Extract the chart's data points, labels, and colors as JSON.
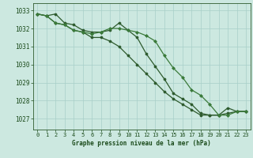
{
  "background_color": "#cce8e0",
  "grid_color": "#a8cfc8",
  "line_color_dark": "#2d5a2d",
  "line_color_mid": "#3a7a3a",
  "xlabel": "Graphe pression niveau de la mer (hPa)",
  "xlabel_color": "#1a4a1a",
  "tick_color": "#1a4a1a",
  "spine_color": "#2d5a2d",
  "xlim": [
    -0.5,
    23.5
  ],
  "ylim": [
    1026.4,
    1033.4
  ],
  "yticks": [
    1027,
    1028,
    1029,
    1030,
    1031,
    1032,
    1033
  ],
  "xticks": [
    0,
    1,
    2,
    3,
    4,
    5,
    6,
    7,
    8,
    9,
    10,
    11,
    12,
    13,
    14,
    15,
    16,
    17,
    18,
    19,
    20,
    21,
    22,
    23
  ],
  "hours": [
    0,
    1,
    2,
    3,
    4,
    5,
    6,
    7,
    8,
    9,
    10,
    11,
    12,
    13,
    14,
    15,
    16,
    17,
    18,
    19,
    20,
    21,
    22,
    23
  ],
  "line1": [
    1032.8,
    1032.7,
    1032.8,
    1032.3,
    1032.2,
    1031.9,
    1031.8,
    1031.8,
    1031.9,
    1032.3,
    1031.9,
    1031.5,
    1030.6,
    1029.9,
    1029.2,
    1028.4,
    1028.1,
    1027.8,
    1027.3,
    1027.2,
    1027.2,
    1027.6,
    1027.4,
    1027.4
  ],
  "line2": [
    1032.8,
    1032.7,
    1032.3,
    1032.2,
    1031.9,
    1031.8,
    1031.7,
    1031.8,
    1032.0,
    1032.0,
    1031.9,
    1031.8,
    1031.6,
    1031.3,
    1030.5,
    1029.8,
    1029.3,
    1028.6,
    1028.3,
    1027.8,
    1027.2,
    1027.2,
    1027.4,
    1027.4
  ],
  "line3": [
    1032.8,
    1032.7,
    1032.3,
    1032.2,
    1031.9,
    1031.8,
    1031.5,
    1031.5,
    1031.3,
    1031.0,
    1030.5,
    1030.0,
    1029.5,
    1029.0,
    1028.5,
    1028.1,
    1027.8,
    1027.5,
    1027.2,
    1027.2,
    1027.2,
    1027.3,
    1027.4,
    1027.4
  ]
}
